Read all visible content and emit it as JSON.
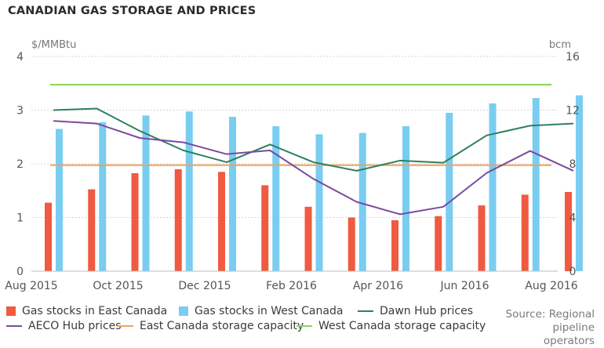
{
  "title": "CANADIAN GAS STORAGE AND PRICES",
  "source": "Source: Regional pipeline operators",
  "colors": {
    "east": "#f05a40",
    "west": "#79cdf0",
    "dawn": "#2e8060",
    "aeco": "#7a4aa0",
    "east_cap": "#f0a35a",
    "west_cap": "#8fd05a"
  },
  "legend": [
    {
      "label": "Gas stocks in East Canada",
      "kind": "box",
      "color": "#f05a40"
    },
    {
      "label": "Gas stocks in West Canada",
      "kind": "box",
      "color": "#79cdf0"
    },
    {
      "label": "Dawn Hub prices",
      "kind": "line",
      "color": "#2e8060"
    },
    {
      "label": "AECO Hub prices",
      "kind": "line",
      "color": "#7a4aa0"
    },
    {
      "label": "East Canada storage capacity",
      "kind": "line",
      "color": "#f0a35a"
    },
    {
      "label": "West Canada storage capacity",
      "kind": "line",
      "color": "#8fd05a"
    }
  ],
  "chart_data": {
    "type": "bar",
    "title": "CANADIAN GAS STORAGE AND PRICES",
    "y_left_label": "$/MMBtu",
    "y_right_label": "bcm",
    "y_left_lim": [
      0,
      4
    ],
    "y_right_lim": [
      0,
      16
    ],
    "y_left_ticks": [
      "0",
      "1",
      "2",
      "3",
      "4"
    ],
    "y_right_ticks": [
      "0",
      "4",
      "8",
      "12",
      "16"
    ],
    "grid": true,
    "legend_position": "bottom",
    "categories": [
      "Aug 2015",
      "Sep 2015",
      "Oct 2015",
      "Nov 2015",
      "Dec 2015",
      "Jan 2016",
      "Feb 2016",
      "Mar 2016",
      "Apr 2016",
      "May 2016",
      "Jun 2016",
      "Jul 2016",
      "Aug 2016"
    ],
    "x_tick_labels": [
      "Aug 2015",
      "Oct 2015",
      "Dec 2015",
      "Feb 2016",
      "Apr 2016",
      "Jun 2016",
      "Aug 2016"
    ],
    "series": [
      {
        "name": "Gas stocks in East Canada",
        "type": "bar",
        "axis": "right",
        "values": [
          5.1,
          6.1,
          7.3,
          7.6,
          7.4,
          6.4,
          4.8,
          4.0,
          3.8,
          4.1,
          4.9,
          5.7,
          5.9
        ]
      },
      {
        "name": "Gas stocks in West Canada",
        "type": "bar",
        "axis": "right",
        "values": [
          10.6,
          11.1,
          11.6,
          11.9,
          11.5,
          10.8,
          10.2,
          10.3,
          10.8,
          11.8,
          12.5,
          12.9,
          13.1
        ]
      },
      {
        "name": "Dawn Hub prices",
        "type": "line",
        "axis": "left",
        "values": [
          3.0,
          3.03,
          2.61,
          2.25,
          2.03,
          2.36,
          2.03,
          1.87,
          2.06,
          2.02,
          2.53,
          2.71,
          2.75
        ]
      },
      {
        "name": "AECO Hub prices",
        "type": "line",
        "axis": "left",
        "values": [
          2.8,
          2.75,
          2.48,
          2.4,
          2.18,
          2.25,
          1.72,
          1.29,
          1.06,
          1.2,
          1.83,
          2.24,
          1.87
        ]
      },
      {
        "name": "East Canada storage capacity",
        "type": "line",
        "axis": "right",
        "values": [
          7.9,
          7.9,
          7.9,
          7.9,
          7.9,
          7.9,
          7.9,
          7.9,
          7.9,
          7.9,
          7.9,
          7.9,
          7.9
        ]
      },
      {
        "name": "West Canada storage capacity",
        "type": "line",
        "axis": "right",
        "values": [
          13.9,
          13.9,
          13.9,
          13.9,
          13.9,
          13.9,
          13.9,
          13.9,
          13.9,
          13.9,
          13.9,
          13.9,
          13.9
        ]
      }
    ]
  }
}
